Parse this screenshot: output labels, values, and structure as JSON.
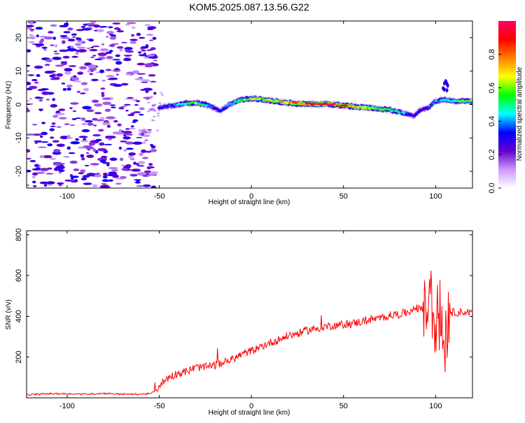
{
  "title": "KOM5.2025.087.13.56.G22",
  "chart_data": [
    {
      "type": "heatmap",
      "xlabel": "Height of straight line (km)",
      "ylabel": "Frequency (Hz)",
      "xlim": [
        -122,
        120
      ],
      "ylim": [
        -25,
        25
      ],
      "xticks": [
        -100,
        -50,
        0,
        50,
        100
      ],
      "yticks": [
        -20,
        -10,
        0,
        10,
        20
      ],
      "colorbar": {
        "label": "Normalized spectral amplitude",
        "range": [
          0,
          1
        ],
        "ticks": [
          0.0,
          0.2,
          0.4,
          0.6,
          0.8
        ],
        "colormap": [
          "#ffffff",
          "#cc99ff",
          "#6600cc",
          "#0000ff",
          "#00ffff",
          "#00ff00",
          "#ffff00",
          "#ff8000",
          "#ff0000",
          "#ff0066"
        ]
      },
      "trace": {
        "x": [
          -50,
          -45,
          -40,
          -35,
          -30,
          -25,
          -20,
          -17,
          -12,
          -8,
          -4,
          0,
          5,
          10,
          15,
          20,
          25,
          30,
          35,
          40,
          45,
          50,
          55,
          60,
          65,
          70,
          75,
          80,
          85,
          88,
          92,
          96,
          100,
          105,
          110,
          115,
          120
        ],
        "y": [
          -1.0,
          -0.5,
          0.0,
          0.5,
          0.5,
          0.0,
          -1.0,
          -2.0,
          0.0,
          1.0,
          1.5,
          1.8,
          1.6,
          1.2,
          0.8,
          0.5,
          0.3,
          0.2,
          0.1,
          0.1,
          0.0,
          -0.3,
          -0.6,
          -0.8,
          -1.0,
          -1.3,
          -1.6,
          -2.2,
          -2.8,
          -3.5,
          -1.5,
          -1.0,
          1.0,
          1.5,
          1.0,
          1.0,
          1.0
        ],
        "amplitude": [
          0.3,
          0.35,
          0.4,
          0.5,
          0.6,
          0.5,
          0.35,
          0.3,
          0.4,
          0.5,
          0.6,
          0.6,
          0.6,
          0.65,
          0.7,
          0.75,
          0.8,
          0.85,
          0.95,
          0.98,
          0.9,
          0.8,
          0.75,
          0.7,
          0.6,
          0.55,
          0.5,
          0.45,
          0.35,
          0.3,
          0.3,
          0.35,
          0.4,
          0.45,
          0.5,
          0.55,
          0.6
        ]
      },
      "noise_region": {
        "x": [
          -122,
          -52
        ],
        "amplitude": 0.1
      }
    },
    {
      "type": "line",
      "xlabel": "Height of straight line (km)",
      "ylabel": "SNR (v/v)",
      "xlim": [
        -122,
        120
      ],
      "ylim": [
        0,
        820
      ],
      "xticks": [
        -100,
        -50,
        0,
        50,
        100
      ],
      "yticks": [
        200,
        400,
        600,
        800
      ],
      "color": "#ff0000",
      "series": [
        {
          "x": [
            -122,
            -110,
            -100,
            -90,
            -80,
            -70,
            -60,
            -55,
            -52,
            -50,
            -45,
            -40,
            -35,
            -30,
            -25,
            -20,
            -15,
            -10,
            -5,
            0,
            5,
            10,
            15,
            20,
            25,
            30,
            35,
            40,
            45,
            50,
            55,
            60,
            65,
            70,
            75,
            80,
            85,
            90,
            95,
            97,
            100,
            102,
            104,
            106,
            108,
            110,
            115,
            120
          ],
          "values": [
            15,
            20,
            20,
            18,
            22,
            18,
            18,
            20,
            35,
            60,
            100,
            120,
            130,
            150,
            150,
            160,
            175,
            190,
            215,
            230,
            250,
            270,
            285,
            305,
            315,
            330,
            340,
            350,
            355,
            360,
            365,
            375,
            385,
            390,
            405,
            410,
            420,
            440,
            420,
            470,
            380,
            420,
            330,
            280,
            420,
            420,
            420,
            420
          ]
        }
      ]
    }
  ]
}
